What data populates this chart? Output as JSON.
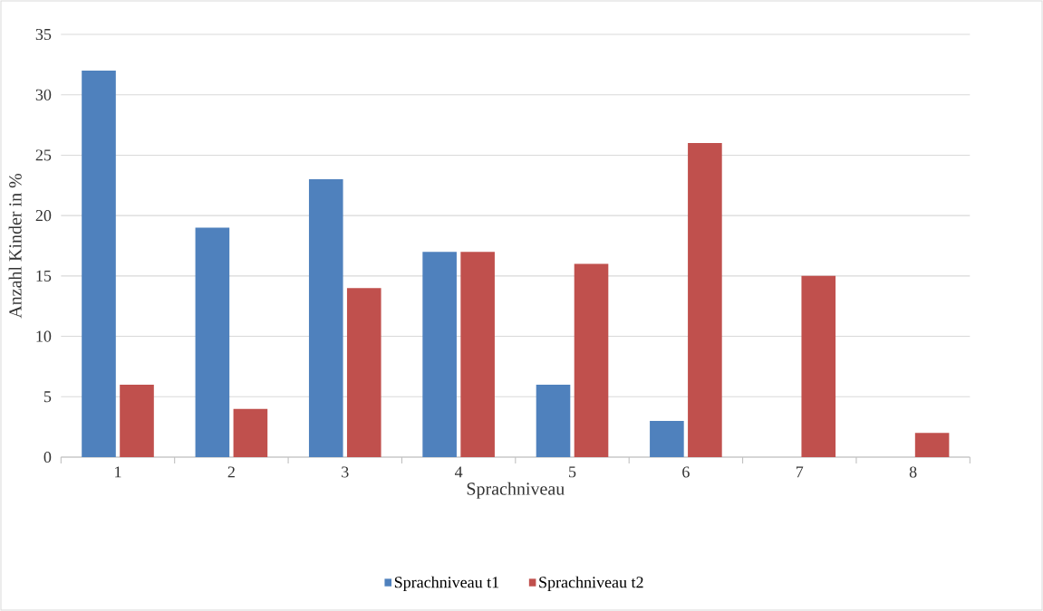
{
  "chart_data": {
    "type": "bar",
    "xlabel": "Sprachniveau",
    "ylabel": "Anzahl Kinder in %",
    "categories": [
      "1",
      "2",
      "3",
      "4",
      "5",
      "6",
      "7",
      "8"
    ],
    "series": [
      {
        "name": "Sprachniveau t1",
        "color": "#4f81bd",
        "values": [
          32,
          19,
          23,
          17,
          6,
          3,
          0,
          0
        ]
      },
      {
        "name": "Sprachniveau t2",
        "color": "#c0504d",
        "values": [
          6,
          4,
          14,
          17,
          16,
          26,
          15,
          2
        ]
      }
    ],
    "ylim": [
      0,
      35
    ],
    "yticks": [
      0,
      5,
      10,
      15,
      20,
      25,
      30,
      35
    ],
    "grid": "y",
    "legend": "bottom"
  }
}
